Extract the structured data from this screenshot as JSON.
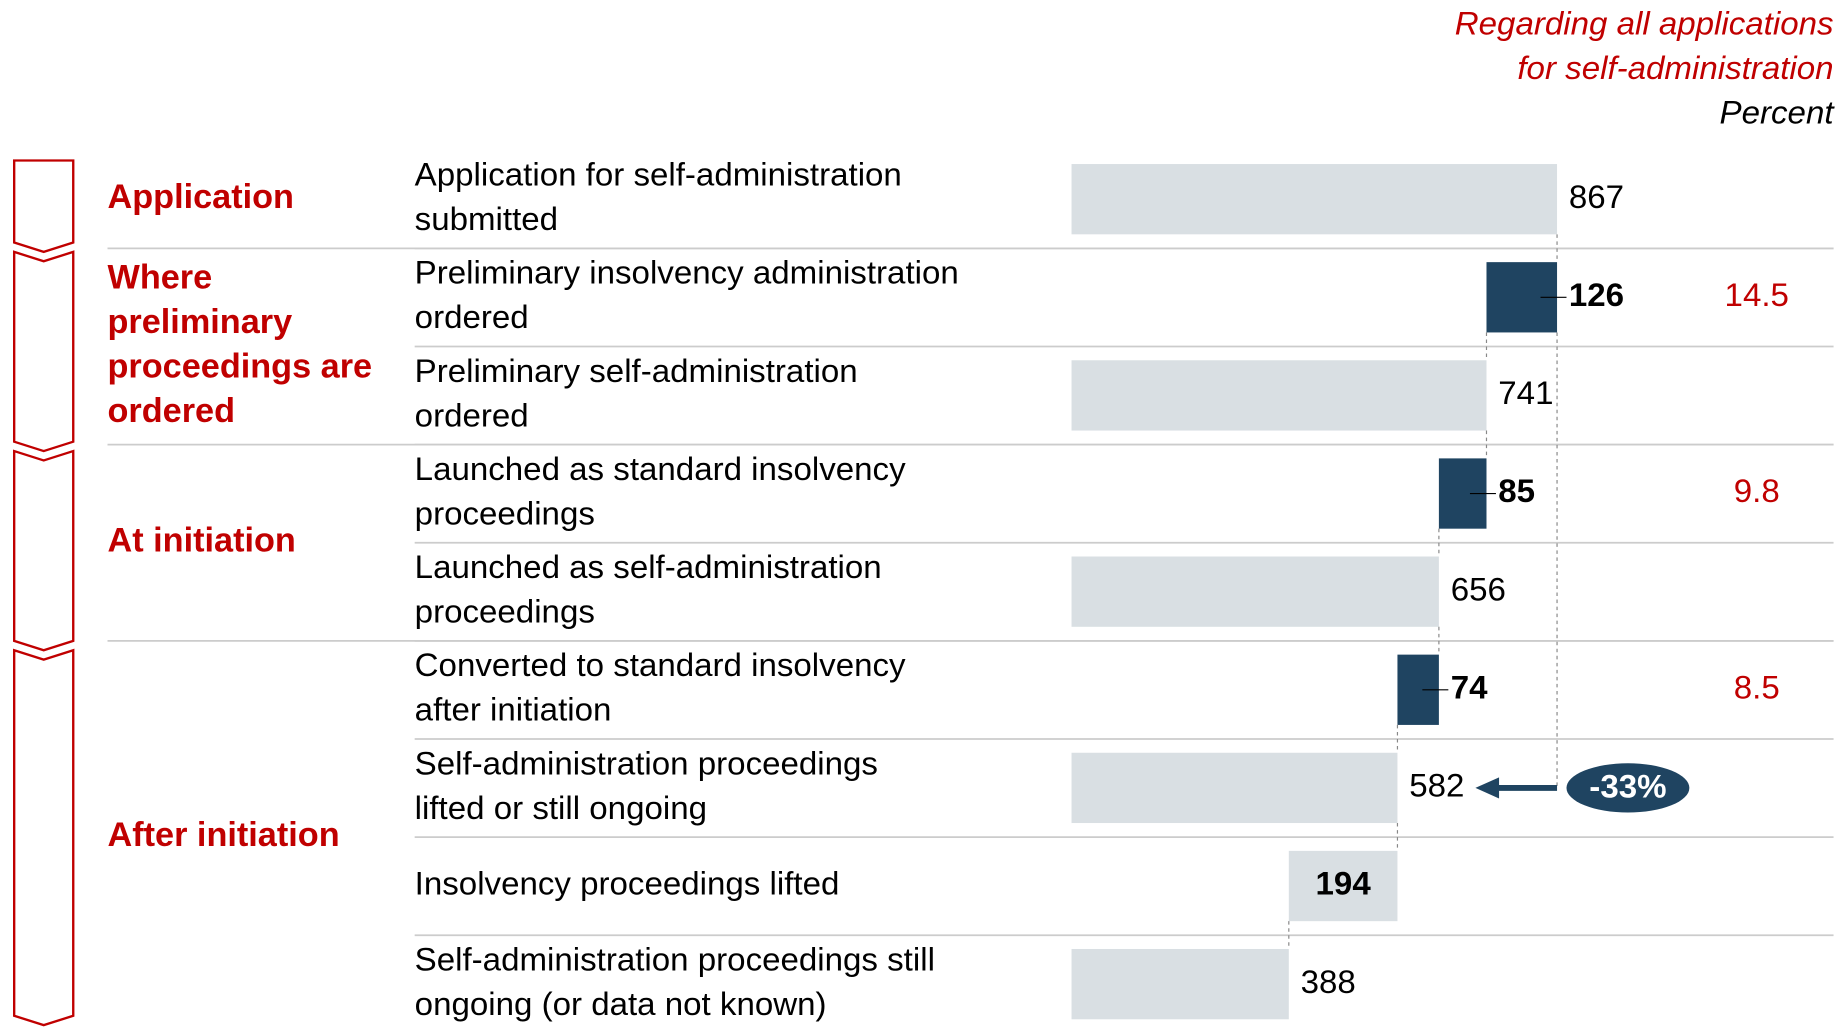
{
  "chart_data": {
    "type": "waterfall",
    "header": [
      "Regarding all applications",
      "for self-administration",
      "Percent"
    ],
    "stages": [
      {
        "label": [
          "Application"
        ],
        "rows": 1
      },
      {
        "label": [
          "Where",
          "preliminary",
          "proceedings are",
          "ordered"
        ],
        "rows": 2
      },
      {
        "label": [
          "At initiation"
        ],
        "rows": 2
      },
      {
        "label": [
          "After initiation"
        ],
        "rows": 4
      }
    ],
    "rows": [
      {
        "label": [
          "Application for self-administration",
          "submitted"
        ],
        "value": 867,
        "kind": "total",
        "color": "#d9dfe3"
      },
      {
        "label": [
          "Preliminary insolvency administration",
          "ordered"
        ],
        "value": 126,
        "kind": "step",
        "color": "#1f4461",
        "percent": 14.5
      },
      {
        "label": [
          "Preliminary self-administration",
          "ordered"
        ],
        "value": 741,
        "kind": "total",
        "color": "#d9dfe3"
      },
      {
        "label": [
          "Launched as standard insolvency",
          "proceedings"
        ],
        "value": 85,
        "kind": "step",
        "color": "#1f4461",
        "percent": 9.8
      },
      {
        "label": [
          "Launched as self-administration",
          "proceedings"
        ],
        "value": 656,
        "kind": "total",
        "color": "#d9dfe3"
      },
      {
        "label": [
          "Converted to standard insolvency",
          "after initiation"
        ],
        "value": 74,
        "kind": "step",
        "color": "#1f4461",
        "percent": 8.5
      },
      {
        "label": [
          "Self-administration proceedings",
          "lifted or still ongoing"
        ],
        "value": 582,
        "kind": "total",
        "color": "#d9dfe3"
      },
      {
        "label": [
          "Insolvency proceedings lifted"
        ],
        "value": 194,
        "kind": "step",
        "color": "#d9dfe3"
      },
      {
        "label": [
          "Self-administration proceedings still",
          "ongoing (or data not known)"
        ],
        "value": 388,
        "kind": "total",
        "color": "#d9dfe3"
      }
    ],
    "annotation": "-33%"
  }
}
